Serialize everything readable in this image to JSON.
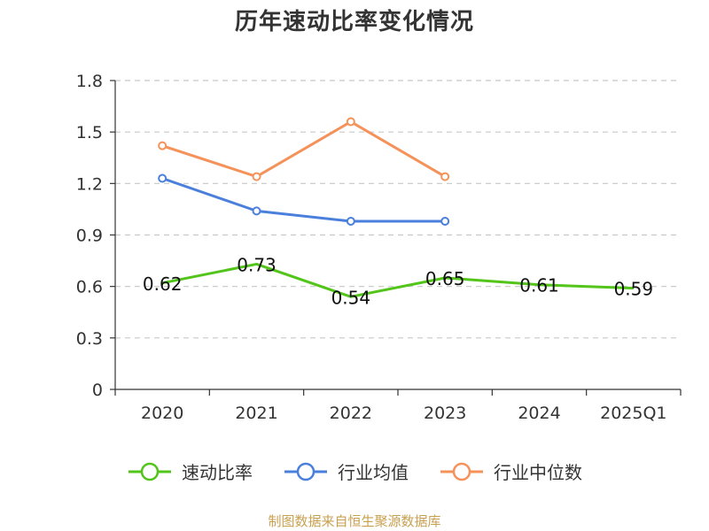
{
  "title": "历年速动比率变化情况",
  "source": "制图数据来自恒生聚源数据库",
  "colors": {
    "series": [
      "#52c41a",
      "#4a7fdc",
      "#f5925a"
    ],
    "grid": "#c8c8c8",
    "axis": "#333333"
  },
  "chart_data": {
    "type": "line",
    "title": "历年速动比率变化情况",
    "xlabel": "",
    "ylabel": "",
    "ylim": [
      0,
      1.8
    ],
    "yticks": [
      "0",
      "0.3",
      "0.6",
      "0.9",
      "1.2",
      "1.5",
      "1.8"
    ],
    "grid": true,
    "legend_position": "bottom",
    "categories": [
      "2020",
      "2021",
      "2022",
      "2023",
      "2024",
      "2025Q1"
    ],
    "series": [
      {
        "name": "速动比率",
        "values": [
          0.62,
          0.73,
          0.54,
          0.65,
          0.61,
          0.59
        ],
        "labels": [
          "0.62",
          "0.73",
          "0.54",
          "0.65",
          "0.61",
          "0.59"
        ],
        "markers": "hidden"
      },
      {
        "name": "行业均值",
        "values": [
          1.23,
          1.04,
          0.98,
          0.98,
          null,
          null
        ],
        "markers": "circle"
      },
      {
        "name": "行业中位数",
        "values": [
          1.42,
          1.24,
          1.56,
          1.24,
          null,
          null
        ],
        "markers": "circle"
      }
    ]
  }
}
